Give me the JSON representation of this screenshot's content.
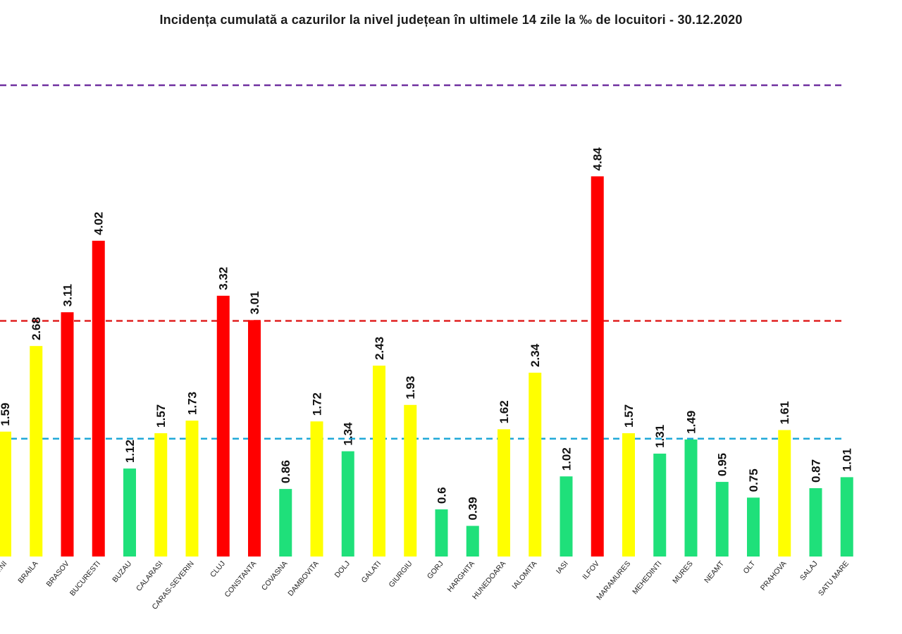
{
  "chart_data": {
    "type": "bar",
    "title": "Incidența cumulată a cazurilor la nivel județean în ultimele 14 zile la ‰ de locuitori - 30.12.2020",
    "categories": [
      "...NI",
      "BRAILA",
      "BRASOV",
      "BUCURESTI",
      "BUZAU",
      "CALARASI",
      "CARAS-SEVERIN",
      "CLUJ",
      "CONSTANTA",
      "COVASNA",
      "DAMBOVITA",
      "DOLJ",
      "GALATI",
      "GIURGIU",
      "GORJ",
      "HARGHITA",
      "HUNEDOARA",
      "IALOMITA",
      "IASI",
      "ILFOV",
      "MARAMURES",
      "MEHEDINTI",
      "MURES",
      "NEAMT",
      "OLT",
      "PRAHOVA",
      "SALAJ",
      "SATU MARE"
    ],
    "values": [
      1.59,
      2.68,
      3.11,
      4.02,
      1.12,
      1.57,
      1.73,
      3.32,
      3.01,
      0.86,
      1.72,
      1.34,
      2.43,
      1.93,
      0.6,
      0.39,
      1.62,
      2.34,
      1.02,
      4.84,
      1.57,
      1.31,
      1.49,
      0.95,
      0.75,
      1.61,
      0.87,
      1.01
    ],
    "value_labels": [
      "1.59",
      "2.68",
      "3.11",
      "4.02",
      "1.12",
      "1.57",
      "1.73",
      "3.32",
      "3.01",
      "0.86",
      "1.72",
      "1.34",
      "2.43",
      "1.93",
      "0.6",
      "0.39",
      "1.62",
      "2.34",
      "1.02",
      "4.84",
      "1.57",
      "1.31",
      "1.49",
      "0.95",
      "0.75",
      "1.61",
      "0.87",
      "1.01"
    ],
    "bar_colors": [
      "#ffff00",
      "#ffff00",
      "#ff0000",
      "#ff0000",
      "#1fe07a",
      "#ffff00",
      "#ffff00",
      "#ff0000",
      "#ff0000",
      "#1fe07a",
      "#ffff00",
      "#1fe07a",
      "#ffff00",
      "#ffff00",
      "#1fe07a",
      "#1fe07a",
      "#ffff00",
      "#ffff00",
      "#1fe07a",
      "#ff0000",
      "#ffff00",
      "#1fe07a",
      "#1fe07a",
      "#1fe07a",
      "#1fe07a",
      "#ffff00",
      "#1fe07a",
      "#1fe07a"
    ],
    "reference_lines": [
      {
        "value": 6,
        "color": "#7030a0"
      },
      {
        "value": 3,
        "color": "#e02020"
      },
      {
        "value": 1.5,
        "color": "#1fa8d8"
      }
    ],
    "ylim": [
      0,
      7
    ],
    "grid": false,
    "legend": "none"
  }
}
